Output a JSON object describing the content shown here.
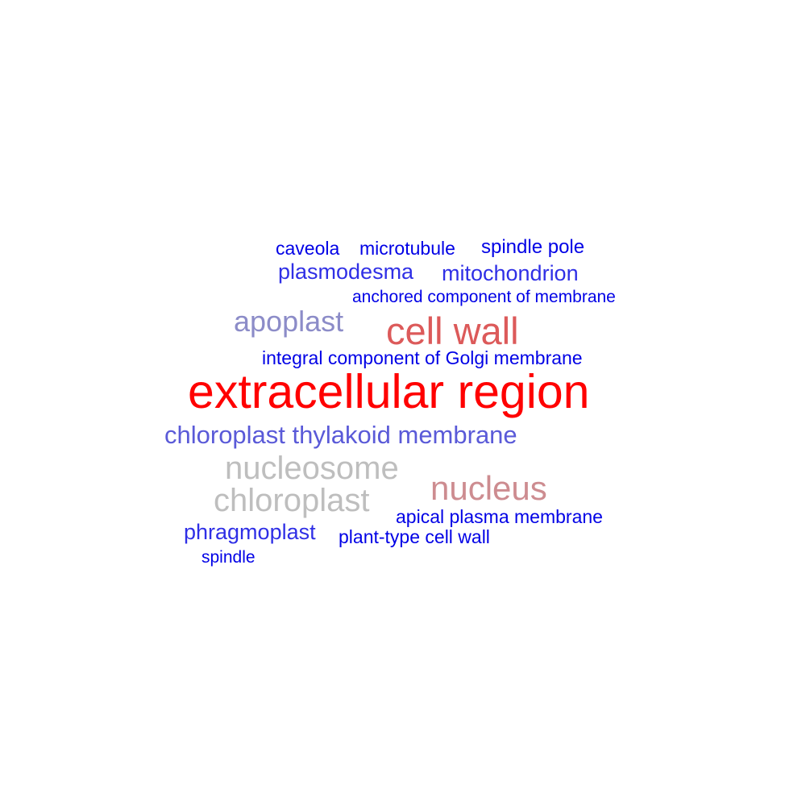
{
  "colors": {
    "strong_red": "#ff0000",
    "red": "#dc5a5a",
    "pink_grey": "#cd8c90",
    "grey": "#bebebe",
    "lavender": "#8c8cc8",
    "medium_blue": "#5a5ad8",
    "blue": "#2f2fe6",
    "pure_blue": "#0000e6"
  },
  "words": [
    {
      "id": "caveola",
      "text": "caveola",
      "color": "#0000e6"
    },
    {
      "id": "microtubule",
      "text": "microtubule",
      "color": "#0000e6"
    },
    {
      "id": "spindle-pole",
      "text": "spindle pole",
      "color": "#0000e6"
    },
    {
      "id": "plasmodesma",
      "text": "plasmodesma",
      "color": "#2f2fe6"
    },
    {
      "id": "mitochondrion",
      "text": "mitochondrion",
      "color": "#2f2fe6"
    },
    {
      "id": "anchored",
      "text": "anchored component of membrane",
      "color": "#0000e6"
    },
    {
      "id": "apoplast",
      "text": "apoplast",
      "color": "#8c8cc8"
    },
    {
      "id": "cell-wall",
      "text": "cell wall",
      "color": "#dc5a5a"
    },
    {
      "id": "golgi",
      "text": "integral component of Golgi membrane",
      "color": "#0000e6"
    },
    {
      "id": "extracellular",
      "text": "extracellular region",
      "color": "#ff0000"
    },
    {
      "id": "thylakoid",
      "text": "chloroplast thylakoid membrane",
      "color": "#5a5ad8"
    },
    {
      "id": "nucleosome",
      "text": "nucleosome",
      "color": "#bebebe"
    },
    {
      "id": "nucleus",
      "text": "nucleus",
      "color": "#cd8c90"
    },
    {
      "id": "chloroplast",
      "text": "chloroplast",
      "color": "#bebebe"
    },
    {
      "id": "apical",
      "text": "apical plasma membrane",
      "color": "#0000e6"
    },
    {
      "id": "phragmoplast",
      "text": "phragmoplast",
      "color": "#2f2fe6"
    },
    {
      "id": "plant-type",
      "text": "plant-type cell wall",
      "color": "#0000e6"
    },
    {
      "id": "spindle",
      "text": "spindle",
      "color": "#0000e6"
    }
  ]
}
